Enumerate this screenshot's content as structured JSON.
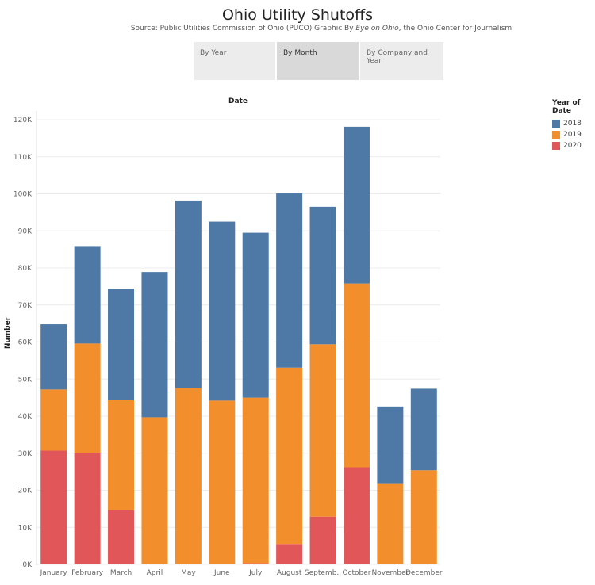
{
  "header": {
    "title": "Ohio Utility Shutoffs",
    "subtitle_prefix": "Source: Public Utilities Commission of Ohio (PUCO) Graphic By ",
    "subtitle_em": "Eye on Ohio",
    "subtitle_suffix": ", the Ohio Center for Journalism"
  },
  "tabs": [
    {
      "label": "By Year",
      "active": false
    },
    {
      "label": "By Month",
      "active": true
    },
    {
      "label": "By Company and Year",
      "active": false
    }
  ],
  "legend": {
    "title": "Year of Date",
    "items": [
      {
        "label": "2018",
        "color": "#4e79a7"
      },
      {
        "label": "2019",
        "color": "#f28e2b"
      },
      {
        "label": "2020",
        "color": "#e15759"
      }
    ]
  },
  "chart_data": {
    "type": "bar",
    "stacked": true,
    "title": "Date",
    "xlabel": "",
    "ylabel": "Number",
    "ylim": [
      0,
      120000
    ],
    "yticks": [
      0,
      10000,
      20000,
      30000,
      40000,
      50000,
      60000,
      70000,
      80000,
      90000,
      100000,
      110000,
      120000
    ],
    "ytick_labels": [
      "0K",
      "10K",
      "20K",
      "30K",
      "40K",
      "50K",
      "60K",
      "70K",
      "80K",
      "90K",
      "100K",
      "110K",
      "120K"
    ],
    "grid": true,
    "legend_position": "top-right",
    "categories": [
      "January",
      "February",
      "March",
      "April",
      "May",
      "June",
      "July",
      "August",
      "Septemb..",
      "October",
      "November",
      "December"
    ],
    "series": [
      {
        "name": "2020",
        "color": "#e15759",
        "values": [
          30700,
          30000,
          14600,
          0,
          0,
          0,
          300,
          5500,
          12900,
          26200,
          0,
          0
        ]
      },
      {
        "name": "2019",
        "color": "#f28e2b",
        "values": [
          16500,
          29600,
          29700,
          39700,
          47600,
          44200,
          44700,
          47600,
          46500,
          49600,
          21900,
          25400
        ]
      },
      {
        "name": "2018",
        "color": "#4e79a7",
        "values": [
          17600,
          26300,
          30100,
          39200,
          50600,
          48300,
          44500,
          47000,
          37100,
          42300,
          20700,
          22000
        ]
      }
    ]
  }
}
